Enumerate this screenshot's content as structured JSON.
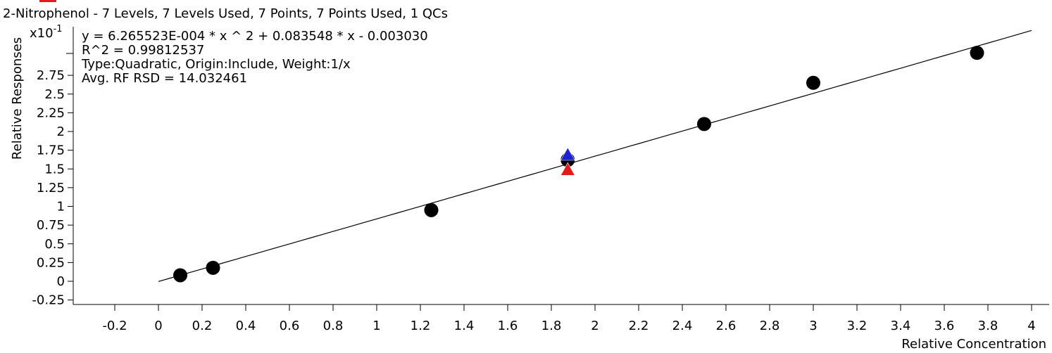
{
  "chart_data": {
    "type": "scatter",
    "title": "2-Nitrophenol - 7 Levels, 7 Levels Used, 7 Points, 7 Points Used, 1 QCs",
    "xlabel": "Relative Concentration",
    "ylabel": "Relative Responses",
    "y_multiplier_label": "x10",
    "y_multiplier_exponent": "-1",
    "annotations": [
      "y = 6.265523E-004 * x ^ 2  + 0.083548 * x  - 0.003030",
      "R^2 = 0.99812537",
      "Type:Quadratic, Origin:Include, Weight:1/x",
      "Avg. RF RSD = 14.032461"
    ],
    "xlim": [
      -0.4,
      4.05
    ],
    "ylim": [
      -0.3,
      3.4
    ],
    "x_ticks": [
      "-0.2",
      "0",
      "0.2",
      "0.4",
      "0.6",
      "0.8",
      "1",
      "1.2",
      "1.4",
      "1.6",
      "1.8",
      "2",
      "2.2",
      "2.4",
      "2.6",
      "2.8",
      "3",
      "3.2",
      "3.4",
      "3.6",
      "3.8",
      "4"
    ],
    "y_ticks": [
      "-0.25",
      "0",
      "0.25",
      "0.5",
      "0.75",
      "1",
      "1.25",
      "1.5",
      "1.75",
      "2",
      "2.25",
      "2.5",
      "2.75"
    ],
    "grid": false,
    "curve": {
      "type": "quadratic",
      "a": 0.0006265523,
      "b": 0.083548,
      "c": -0.00303,
      "x_range": [
        0,
        4
      ],
      "color": "#000000"
    },
    "series": [
      {
        "marker": "circle",
        "color": "#000000",
        "points": [
          {
            "x": 0.1,
            "y": 0.08
          },
          {
            "x": 0.25,
            "y": 0.18
          },
          {
            "x": 1.25,
            "y": 0.95
          },
          {
            "x": 1.875,
            "y": 1.62
          },
          {
            "x": 2.5,
            "y": 2.1
          },
          {
            "x": 3.0,
            "y": 2.65
          },
          {
            "x": 3.75,
            "y": 3.05
          }
        ]
      },
      {
        "marker": "triangle",
        "color": "#1f1fd6",
        "points": [
          {
            "x": 1.875,
            "y": 1.7
          }
        ]
      },
      {
        "marker": "triangle",
        "color": "#e41a1a",
        "points": [
          {
            "x": 1.875,
            "y": 1.5
          }
        ]
      }
    ],
    "corner_mark_color": "#e41a1a"
  }
}
